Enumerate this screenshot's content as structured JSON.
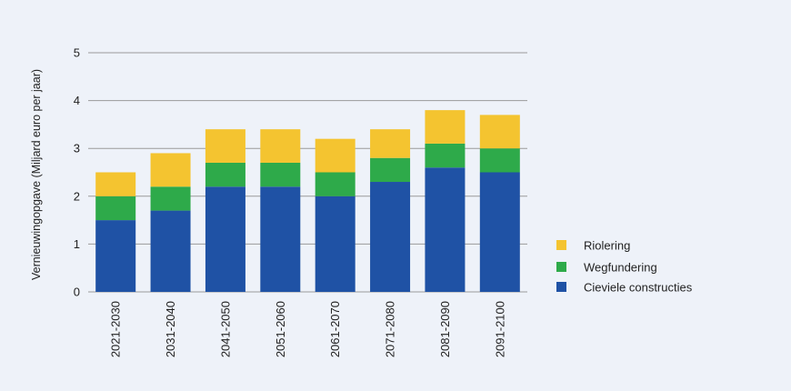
{
  "chart_data": {
    "type": "bar",
    "stacked": true,
    "title": "",
    "xlabel": "",
    "ylabel": "Vernieuwingopgave (Miljard euro per jaar)",
    "ylim": [
      0,
      5
    ],
    "yticks": [
      "0",
      "1",
      "2",
      "3",
      "4",
      "5"
    ],
    "grid": true,
    "legend_position": "right",
    "categories": [
      "2021-2030",
      "2031-2040",
      "2041-2050",
      "2051-2060",
      "2061-2070",
      "2071-2080",
      "2081-2090",
      "2091-2100"
    ],
    "series": [
      {
        "name": "Cieviele constructies",
        "color": "#1f52a5",
        "values": [
          1.5,
          1.7,
          2.2,
          2.2,
          2.0,
          2.3,
          2.6,
          2.5
        ]
      },
      {
        "name": "Wegfundering",
        "color": "#2eaa4a",
        "values": [
          0.5,
          0.5,
          0.5,
          0.5,
          0.5,
          0.5,
          0.5,
          0.5
        ]
      },
      {
        "name": "Riolering",
        "color": "#f4c430",
        "values": [
          0.5,
          0.7,
          0.7,
          0.7,
          0.7,
          0.6,
          0.7,
          0.7
        ]
      }
    ],
    "legend_order": [
      "Riolering",
      "Wegfundering",
      "Cieviele constructies"
    ]
  }
}
